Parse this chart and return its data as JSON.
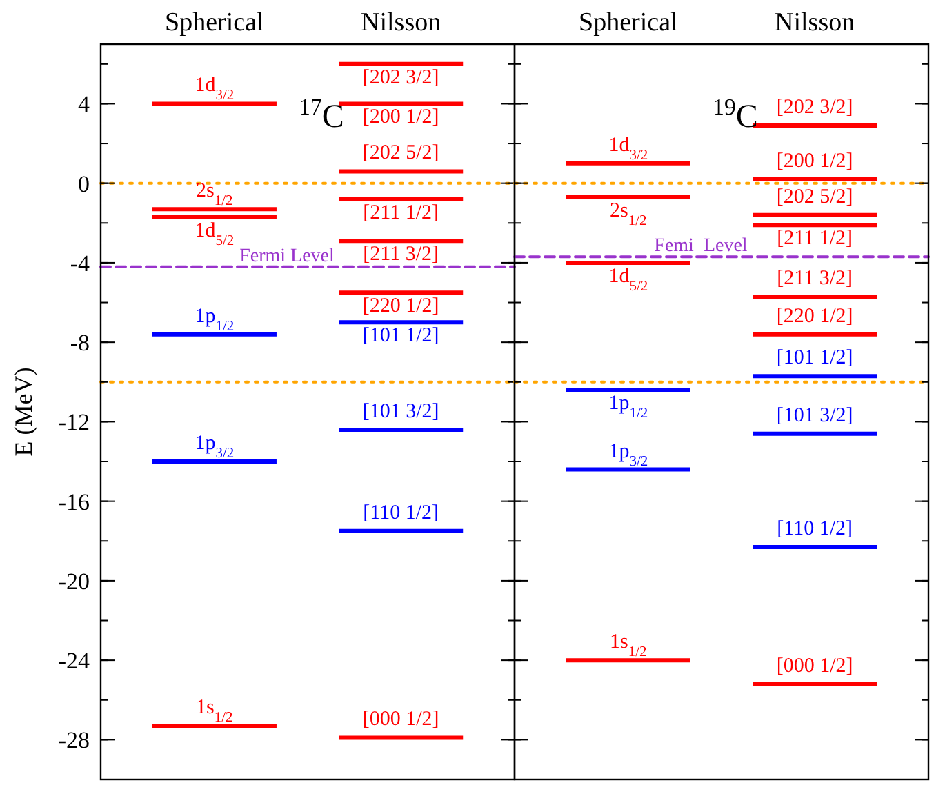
{
  "chart_data": [
    {
      "type": "line",
      "ylabel": "E (MeV)",
      "ylim": [
        -30,
        7
      ],
      "yticks": [
        -28,
        -24,
        -20,
        -16,
        -12,
        -8,
        -4,
        0,
        4
      ],
      "categories": [
        null,
        "Spherical",
        null,
        null,
        "Nilsson",
        null
      ],
      "grid": false,
      "series": [
        {
          "name": "1d$_{3/2}$",
          "color": "#ff0000",
          "values": [
            4.0,
            4.0,
            4.0,
            null,
            null,
            null
          ]
        },
        {
          "name": "2s$_{1/2}$",
          "color": "#ff0000",
          "values": [
            -1.3,
            -1.3,
            -1.3,
            null,
            null,
            null
          ]
        },
        {
          "name": "1d$_{5/2}$",
          "color": "#ff0000",
          "values": [
            -1.7,
            -1.7,
            -1.7,
            null,
            null,
            null
          ]
        },
        {
          "name": "1p$_{1/2}$",
          "color": "#0000ff",
          "values": [
            -7.6,
            -7.6,
            -7.6,
            null,
            null,
            null
          ]
        },
        {
          "name": "1p$_{3/2}$",
          "color": "#0000ff",
          "values": [
            -14.0,
            -14.0,
            -14.0,
            null,
            null,
            null
          ]
        },
        {
          "name": "1s$_{1/2}$",
          "color": "#ff0000",
          "values": [
            -27.3,
            -27.3,
            -27.3,
            null,
            null,
            null
          ]
        },
        {
          "name": "[202 3/2]",
          "color": "#ff0000",
          "values": [
            null,
            null,
            null,
            6.0,
            6.0,
            6.0
          ]
        },
        {
          "name": "[200 1/2]",
          "color": "#ff0000",
          "values": [
            null,
            null,
            null,
            4.0,
            4.0,
            4.0
          ]
        },
        {
          "name": "[202 5/2]",
          "color": "#ff0000",
          "values": [
            null,
            null,
            null,
            0.6,
            0.6,
            0.6
          ]
        },
        {
          "name": "[211 1/2]",
          "color": "#ff0000",
          "values": [
            null,
            null,
            null,
            -0.8,
            -0.8,
            -0.8
          ]
        },
        {
          "name": "[211 3/2]",
          "color": "#ff0000",
          "values": [
            null,
            null,
            null,
            -2.9,
            -2.9,
            -2.9
          ]
        },
        {
          "name": "[220 1/2]",
          "color": "#ff0000",
          "values": [
            null,
            null,
            null,
            -5.5,
            -5.5,
            -5.5
          ]
        },
        {
          "name": "[101 1/2]",
          "color": "#0000ff",
          "values": [
            null,
            null,
            null,
            -7.0,
            -7.0,
            -7.0
          ]
        },
        {
          "name": "[101 3/2]",
          "color": "#0000ff",
          "values": [
            null,
            null,
            null,
            -12.4,
            -12.4,
            -12.4
          ]
        },
        {
          "name": "[110 1/2]",
          "color": "#0000ff",
          "values": [
            null,
            null,
            null,
            -17.5,
            -17.5,
            -17.5
          ]
        },
        {
          "name": "[000 1/2]",
          "color": "#ff0000",
          "values": [
            null,
            null,
            null,
            -27.9,
            -27.9,
            -27.9
          ]
        }
      ],
      "ref_lines": [
        {
          "axis": "y",
          "value": 0,
          "color": "#ffa500",
          "line_style": "dotted"
        },
        {
          "axis": "y",
          "value": -10,
          "color": "#ffa500",
          "line_style": "dotted"
        },
        {
          "axis": "y",
          "value": -4.2,
          "label": "Fermi Level",
          "color": "#9933cc",
          "line_style": "dashed"
        }
      ],
      "annotations": [
        "$^{17}$C"
      ]
    },
    {
      "type": "line",
      "ylim": [
        -30,
        7
      ],
      "yticks": [
        -28,
        -24,
        -20,
        -16,
        -12,
        -8,
        -4,
        0,
        4
      ],
      "categories": [
        null,
        "Spherical",
        null,
        null,
        "Nilsson",
        null
      ],
      "tick_labels": "x",
      "grid": false,
      "series": [
        {
          "name": "1d$_{3/2}$",
          "color": "#ff0000",
          "values": [
            1.0,
            1.0,
            1.0,
            null,
            null,
            null
          ]
        },
        {
          "name": "2s$_{1/2}$",
          "color": "#ff0000",
          "values": [
            -0.7,
            -0.7,
            -0.7,
            null,
            null,
            null
          ]
        },
        {
          "name": "1d$_{5/2}$",
          "color": "#ff0000",
          "values": [
            -4.0,
            -4.0,
            -4.0,
            null,
            null,
            null
          ]
        },
        {
          "name": "1p$_{1/2}$",
          "color": "#0000ff",
          "values": [
            -10.4,
            -10.4,
            -10.4,
            null,
            null,
            null
          ]
        },
        {
          "name": "1p$_{3/2}$",
          "color": "#0000ff",
          "values": [
            -14.4,
            -14.4,
            -14.4,
            null,
            null,
            null
          ]
        },
        {
          "name": "1s$_{1/2}$",
          "color": "#ff0000",
          "values": [
            -24.0,
            -24.0,
            -24.0,
            null,
            null,
            null
          ]
        },
        {
          "name": "[202 3/2]",
          "color": "#ff0000",
          "values": [
            null,
            null,
            null,
            2.9,
            2.9,
            2.9
          ]
        },
        {
          "name": "[200 1/2]",
          "color": "#ff0000",
          "values": [
            null,
            null,
            null,
            0.2,
            0.2,
            0.2
          ]
        },
        {
          "name": "[202 5/2]",
          "color": "#ff0000",
          "values": [
            null,
            null,
            null,
            -1.6,
            -1.6,
            -1.6
          ]
        },
        {
          "name": "[211 1/2]",
          "color": "#ff0000",
          "values": [
            null,
            null,
            null,
            -2.1,
            -2.1,
            -2.1
          ]
        },
        {
          "name": "[211 3/2]",
          "color": "#ff0000",
          "values": [
            null,
            null,
            null,
            -5.7,
            -5.7,
            -5.7
          ]
        },
        {
          "name": "[220 1/2]",
          "color": "#ff0000",
          "values": [
            null,
            null,
            null,
            -7.6,
            -7.6,
            -7.6
          ]
        },
        {
          "name": "[101 1/2]",
          "color": "#0000ff",
          "values": [
            null,
            null,
            null,
            -9.7,
            -9.7,
            -9.7
          ]
        },
        {
          "name": "[101 3/2]",
          "color": "#0000ff",
          "values": [
            null,
            null,
            null,
            -12.6,
            -12.6,
            -12.6
          ]
        },
        {
          "name": "[110 1/2]",
          "color": "#0000ff",
          "values": [
            null,
            null,
            null,
            -18.3,
            -18.3,
            -18.3
          ]
        },
        {
          "name": "[000 1/2]",
          "color": "#ff0000",
          "values": [
            null,
            null,
            null,
            -25.2,
            -25.2,
            -25.2
          ]
        }
      ],
      "ref_lines": [
        {
          "axis": "y",
          "value": 0,
          "color": "#ffa500",
          "line_style": "dotted"
        },
        {
          "axis": "y",
          "value": -10,
          "color": "#ffa500",
          "line_style": "dotted"
        },
        {
          "axis": "y",
          "value": -3.7,
          "label": "Femi  Level",
          "color": "#9933cc",
          "line_style": "dashed"
        }
      ],
      "annotations": [
        "$^{19}$C"
      ]
    }
  ]
}
